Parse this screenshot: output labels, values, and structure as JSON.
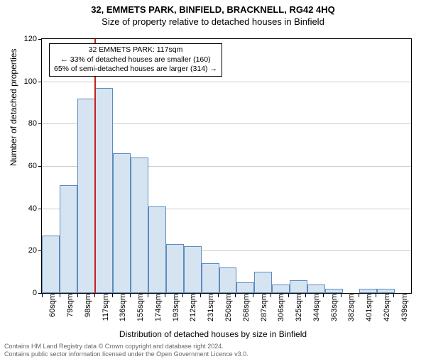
{
  "title_main": "32, EMMETS PARK, BINFIELD, BRACKNELL, RG42 4HQ",
  "title_sub": "Size of property relative to detached houses in Binfield",
  "ylabel": "Number of detached properties",
  "xlabel": "Distribution of detached houses by size in Binfield",
  "chart": {
    "type": "histogram",
    "ylim_max": 120,
    "ytick_step": 20,
    "yticks": [
      0,
      20,
      40,
      60,
      80,
      100,
      120
    ],
    "categories": [
      "60sqm",
      "79sqm",
      "98sqm",
      "117sqm",
      "136sqm",
      "155sqm",
      "174sqm",
      "193sqm",
      "212sqm",
      "231sqm",
      "250sqm",
      "268sqm",
      "287sqm",
      "306sqm",
      "325sqm",
      "344sqm",
      "363sqm",
      "382sqm",
      "401sqm",
      "420sqm",
      "439sqm"
    ],
    "values": [
      27,
      51,
      92,
      97,
      66,
      64,
      41,
      23,
      22,
      14,
      12,
      5,
      10,
      4,
      6,
      4,
      2,
      0,
      2,
      2,
      0
    ],
    "bar_fill": "#d6e4f2",
    "bar_border": "#5b8bbf",
    "grid_color": "#cccccc",
    "background": "#ffffff",
    "highlight_index": 3,
    "highlight_color": "#c82020"
  },
  "annotation": {
    "line1": "32 EMMETS PARK: 117sqm",
    "line2": "← 33% of detached houses are smaller (160)",
    "line3": "65% of semi-detached houses are larger (314) →"
  },
  "footer": {
    "line1": "Contains HM Land Registry data © Crown copyright and database right 2024.",
    "line2": "Contains public sector information licensed under the Open Government Licence v3.0."
  }
}
